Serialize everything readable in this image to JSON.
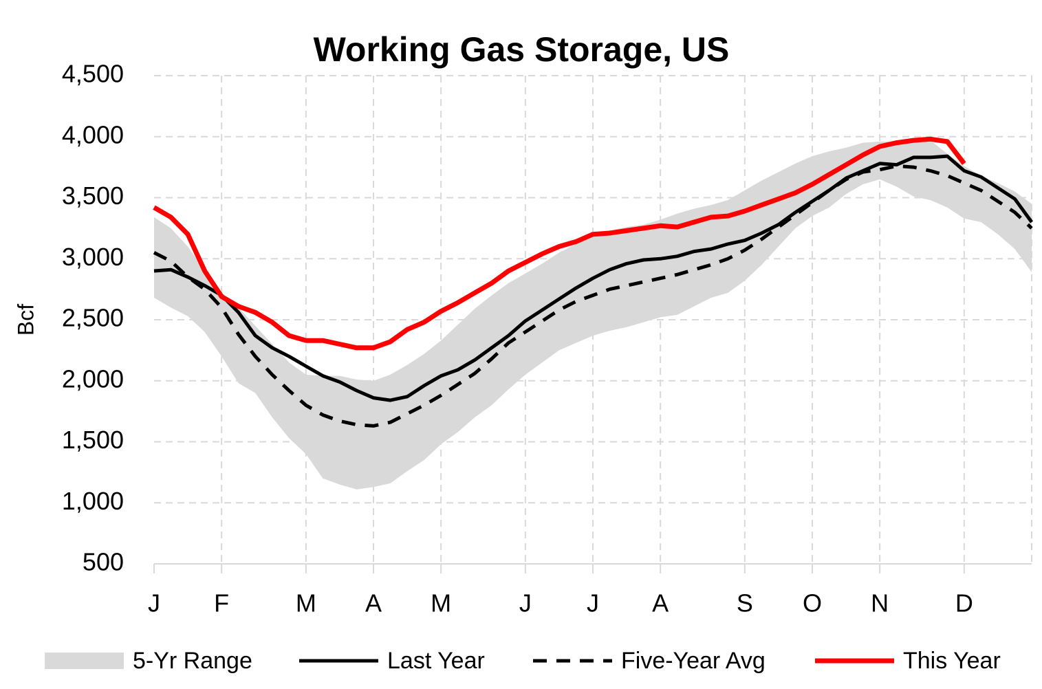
{
  "chart_data": {
    "type": "line",
    "title": "Working Gas Storage, US",
    "y_label": "Bcf",
    "categories": [
      "J",
      null,
      null,
      null,
      "F",
      null,
      null,
      null,
      null,
      "M",
      null,
      null,
      null,
      "A",
      null,
      null,
      null,
      "M",
      null,
      null,
      null,
      null,
      "J",
      null,
      null,
      null,
      "J",
      null,
      null,
      null,
      "A",
      null,
      null,
      null,
      null,
      "S",
      null,
      null,
      null,
      "O",
      null,
      null,
      null,
      "N",
      null,
      null,
      null,
      null,
      "D",
      null,
      null,
      null,
      null
    ],
    "ylim": [
      500,
      4500
    ],
    "yticks": [
      {
        "value": 500,
        "label": "500"
      },
      {
        "value": 1000,
        "label": "1,000"
      },
      {
        "value": 1500,
        "label": "1,500"
      },
      {
        "value": 2000,
        "label": "2,000"
      },
      {
        "value": 2500,
        "label": "2,500"
      },
      {
        "value": 3000,
        "label": "3,000"
      },
      {
        "value": 3500,
        "label": "3,500"
      },
      {
        "value": 4000,
        "label": "4,000"
      },
      {
        "value": 4500,
        "label": "4,500"
      }
    ],
    "grid": true,
    "legend": "bottom",
    "series": [
      {
        "name": "5-Yr Range",
        "color": "#d9d9d9",
        "kind": "band",
        "high": [
          3340,
          3250,
          3100,
          2900,
          2720,
          2600,
          2450,
          2300,
          2150,
          2050,
          2040,
          2040,
          2010,
          2000,
          2050,
          2130,
          2220,
          2330,
          2460,
          2590,
          2700,
          2800,
          2880,
          2960,
          3050,
          3120,
          3190,
          3230,
          3260,
          3280,
          3320,
          3370,
          3410,
          3440,
          3480,
          3560,
          3640,
          3710,
          3780,
          3840,
          3880,
          3910,
          3950,
          3960,
          3960,
          3970,
          3970,
          3860,
          3760,
          3680,
          3620,
          3550,
          3450
        ],
        "low": [
          2680,
          2600,
          2530,
          2400,
          2200,
          1980,
          1900,
          1700,
          1530,
          1400,
          1200,
          1150,
          1110,
          1130,
          1160,
          1260,
          1350,
          1480,
          1580,
          1700,
          1800,
          1930,
          2050,
          2150,
          2250,
          2310,
          2370,
          2410,
          2440,
          2480,
          2520,
          2540,
          2610,
          2680,
          2720,
          2820,
          2950,
          3100,
          3250,
          3350,
          3420,
          3530,
          3610,
          3650,
          3590,
          3510,
          3480,
          3420,
          3330,
          3300,
          3200,
          3080,
          2890
        ]
      },
      {
        "name": "Last Year",
        "color": "#000000",
        "dash": false,
        "width": 5,
        "values": [
          2900,
          2910,
          2850,
          2780,
          2700,
          2560,
          2370,
          2270,
          2200,
          2120,
          2040,
          1990,
          1920,
          1860,
          1840,
          1870,
          1960,
          2040,
          2090,
          2170,
          2270,
          2370,
          2490,
          2580,
          2670,
          2760,
          2840,
          2910,
          2960,
          2990,
          3000,
          3020,
          3060,
          3080,
          3120,
          3150,
          3210,
          3280,
          3380,
          3470,
          3560,
          3660,
          3720,
          3780,
          3770,
          3830,
          3830,
          3840,
          3720,
          3670,
          3580,
          3490,
          3300
        ]
      },
      {
        "name": "Five-Year Avg",
        "color": "#000000",
        "dash": true,
        "width": 5,
        "values": [
          3050,
          2980,
          2850,
          2750,
          2600,
          2380,
          2200,
          2050,
          1920,
          1800,
          1720,
          1670,
          1640,
          1630,
          1660,
          1730,
          1800,
          1880,
          1970,
          2060,
          2180,
          2310,
          2400,
          2490,
          2580,
          2650,
          2700,
          2750,
          2780,
          2810,
          2840,
          2870,
          2910,
          2950,
          3000,
          3070,
          3160,
          3260,
          3360,
          3460,
          3560,
          3650,
          3710,
          3730,
          3760,
          3750,
          3720,
          3680,
          3620,
          3560,
          3470,
          3380,
          3250
        ]
      },
      {
        "name": "This Year",
        "color": "#ff0000",
        "dash": false,
        "width": 7,
        "values": [
          3420,
          3340,
          3200,
          2900,
          2690,
          2610,
          2560,
          2480,
          2370,
          2330,
          2330,
          2300,
          2270,
          2270,
          2320,
          2420,
          2480,
          2570,
          2640,
          2720,
          2800,
          2900,
          2970,
          3040,
          3100,
          3140,
          3200,
          3210,
          3230,
          3250,
          3270,
          3260,
          3300,
          3340,
          3350,
          3390,
          3440,
          3490,
          3540,
          3610,
          3690,
          3770,
          3850,
          3920,
          3950,
          3970,
          3980,
          3960,
          3780,
          null,
          null,
          null,
          null
        ]
      }
    ]
  }
}
